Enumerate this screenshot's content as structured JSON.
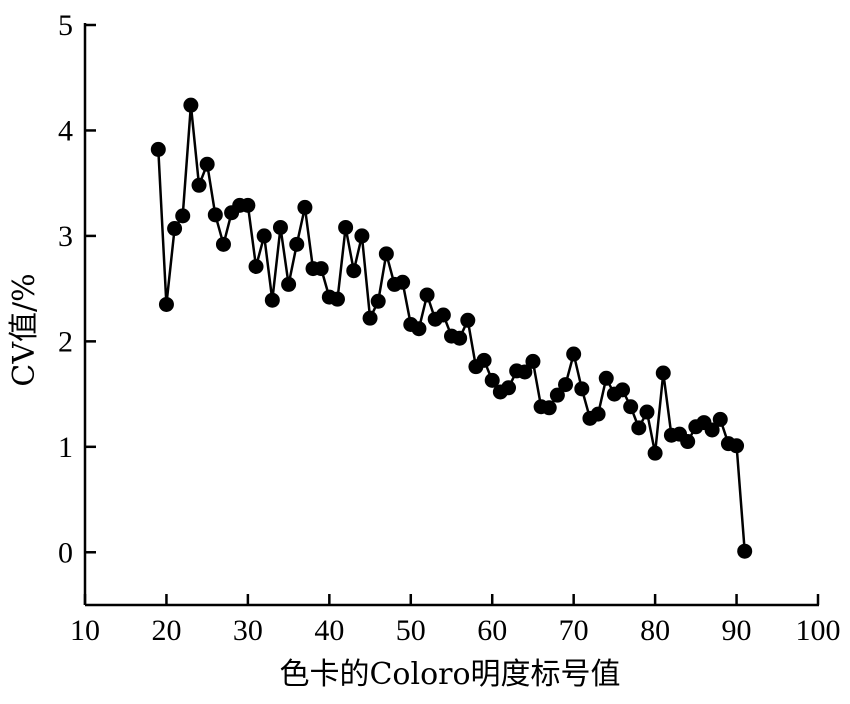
{
  "chart_data": {
    "type": "line",
    "title": "",
    "xlabel": "色卡的Coloro明度标号值",
    "ylabel": "CV值/%",
    "xlim": [
      10,
      100
    ],
    "ylim": [
      -0.5,
      5
    ],
    "xticks": [
      10,
      20,
      30,
      40,
      50,
      60,
      70,
      80,
      90,
      100
    ],
    "yticks": [
      0,
      1,
      2,
      3,
      4,
      5
    ],
    "grid": false,
    "legend": "none",
    "marker": "filled-circle",
    "line_color": "#000000",
    "series": [
      {
        "x": [
          19,
          20,
          21,
          22,
          23,
          24,
          25,
          26,
          27,
          28,
          29,
          30,
          31,
          32,
          33,
          34,
          35,
          36,
          37,
          38,
          39,
          40,
          41,
          42,
          43,
          44,
          45,
          46,
          47,
          48,
          49,
          50,
          51,
          52,
          53,
          54,
          55,
          56,
          57,
          58,
          59,
          60,
          61,
          62,
          63,
          64,
          65,
          66,
          67,
          68,
          69,
          70,
          71,
          72,
          73,
          74,
          75,
          76,
          77,
          78,
          79,
          80,
          81,
          82,
          83,
          84,
          85,
          86,
          87,
          88,
          89,
          90,
          91
        ],
        "values": [
          3.82,
          2.35,
          3.07,
          3.19,
          4.24,
          3.48,
          3.68,
          3.2,
          2.92,
          3.22,
          3.29,
          3.29,
          2.71,
          3.0,
          2.39,
          3.08,
          2.54,
          2.92,
          3.27,
          2.69,
          2.69,
          2.42,
          2.4,
          3.08,
          2.67,
          3.0,
          2.22,
          2.38,
          2.83,
          2.54,
          2.56,
          2.16,
          2.12,
          2.44,
          2.21,
          2.25,
          2.05,
          2.03,
          2.2,
          1.76,
          1.82,
          1.63,
          1.52,
          1.56,
          1.72,
          1.71,
          1.81,
          1.38,
          1.37,
          1.49,
          1.59,
          1.88,
          1.55,
          1.27,
          1.31,
          1.65,
          1.5,
          1.54,
          1.38,
          1.18,
          1.33,
          0.94,
          1.7,
          1.11,
          1.12,
          1.05,
          1.19,
          1.23,
          1.16,
          1.26,
          1.03,
          1.01,
          0.01
        ]
      }
    ]
  }
}
